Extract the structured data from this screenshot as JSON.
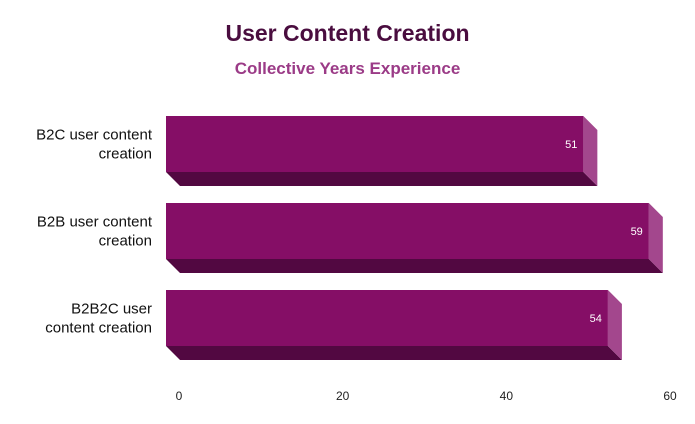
{
  "chart_data": {
    "type": "bar",
    "orientation": "horizontal",
    "style": "3d",
    "title": "User Content Creation",
    "subtitle": "Collective Years Experience",
    "categories": [
      [
        "B2C user content",
        "creation"
      ],
      [
        "B2B user content",
        "creation"
      ],
      [
        "B2B2C user",
        "content creation"
      ]
    ],
    "values": [
      51,
      59,
      54
    ],
    "xlim": [
      0,
      60
    ],
    "xticks": [
      0,
      20,
      40,
      60
    ],
    "grid": false,
    "legend": "none",
    "colors": {
      "bar_front": "#850e66",
      "bar_side": "#a3478d",
      "bar_bottom": "#520841",
      "title": "#4a0d3f",
      "subtitle": "#9b3b87"
    }
  }
}
